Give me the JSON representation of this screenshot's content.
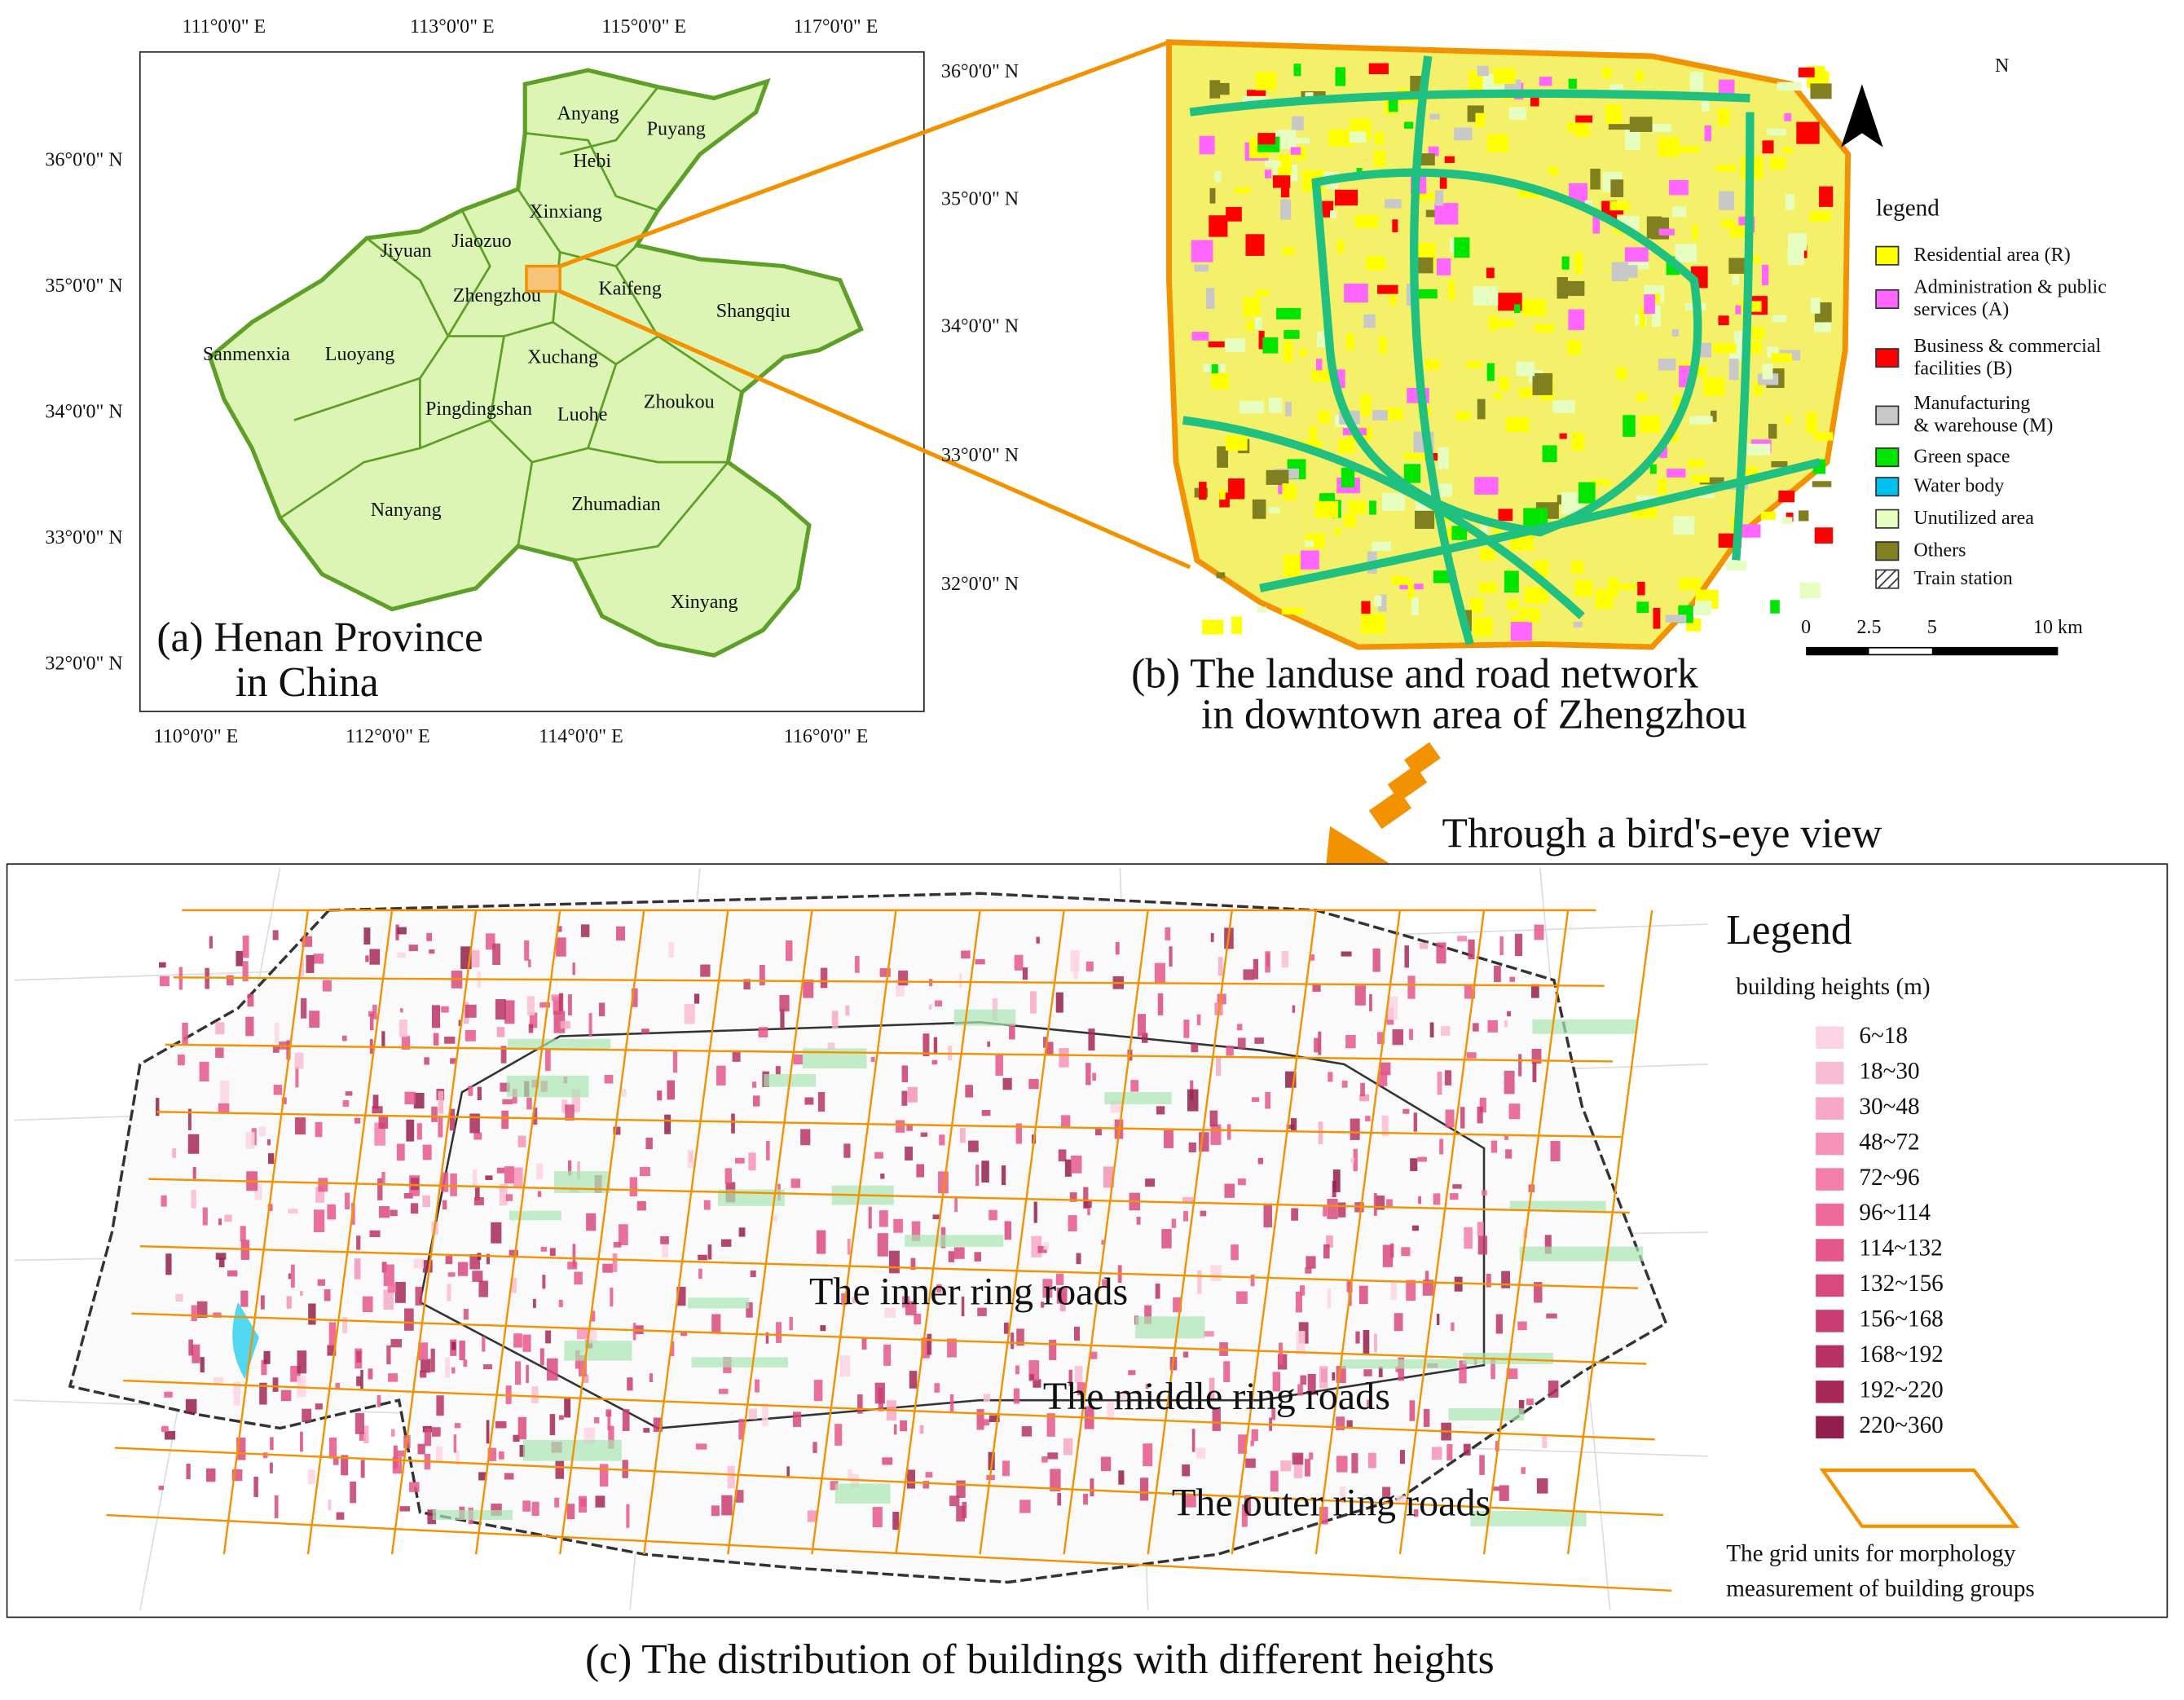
{
  "panel_a": {
    "caption": [
      "(a)  Henan Province",
      "in China"
    ],
    "top_ticks": [
      "111°0'0\" E",
      "113°0'0\" E",
      "115°0'0\" E",
      "117°0'0\" E"
    ],
    "bottom_ticks": [
      "110°0'0\" E",
      "112°0'0\" E",
      "114°0'0\" E",
      "116°0'0\" E"
    ],
    "left_ticks": [
      "36°0'0\" N",
      "35°0'0\" N",
      "34°0'0\" N",
      "33°0'0\" N",
      "32°0'0\" N"
    ],
    "right_ticks": [
      "36°0'0\" N",
      "35°0'0\" N",
      "34°0'0\" N",
      "33°0'0\" N",
      "32°0'0\" N"
    ],
    "cities": [
      "Anyang",
      "Puyang",
      "Hebi",
      "Xinxiang",
      "Jiyuan",
      "Jiaozuo",
      "Zhengzhou",
      "Kaifeng",
      "Shangqiu",
      "Sanmenxia",
      "Luoyang",
      "Xuchang",
      "Pingdingshan",
      "Luohe",
      "Zhoukou",
      "Nanyang",
      "Zhumadian",
      "Xinyang"
    ]
  },
  "panel_b": {
    "north": "N",
    "legend_title": "legend",
    "legend": [
      {
        "label": [
          "Residential area (R)"
        ],
        "color": "#ffff00"
      },
      {
        "label": [
          "Administration & public",
          "services (A)"
        ],
        "color": "#ff66ff"
      },
      {
        "label": [
          "Business & commercial",
          "facilities (B)"
        ],
        "color": "#ff0000"
      },
      {
        "label": [
          "Manufacturing",
          "& warehouse (M)"
        ],
        "color": "#c8c8c8"
      },
      {
        "label": [
          "Green space"
        ],
        "color": "#00e600"
      },
      {
        "label": [
          "Water body"
        ],
        "color": "#00c0f0"
      },
      {
        "label": [
          "Unutilized area"
        ],
        "color": "#e6ffc0"
      },
      {
        "label": [
          "Others"
        ],
        "color": "#808020"
      },
      {
        "label": [
          "Train station"
        ],
        "color": "hatch"
      }
    ],
    "scale": [
      "0",
      "2.5",
      "5",
      "10 km"
    ],
    "caption": [
      "(b) The landuse and road network",
      "in downtown area of Zhengzhou"
    ]
  },
  "arrow_text": "Through a bird's-eye view",
  "panel_c": {
    "legend_title": "Legend",
    "legend_subtitle": "building heights (m)",
    "classes": [
      {
        "label": "6~18",
        "color": "#fbd3e2"
      },
      {
        "label": "18~30",
        "color": "#f9bdd3"
      },
      {
        "label": "30~48",
        "color": "#f7a8c6"
      },
      {
        "label": "48~72",
        "color": "#f593b8"
      },
      {
        "label": "72~96",
        "color": "#f27ea9"
      },
      {
        "label": "96~114",
        "color": "#ee6a9b"
      },
      {
        "label": "114~132",
        "color": "#e5578b"
      },
      {
        "label": "132~156",
        "color": "#d84a7e"
      },
      {
        "label": "156~168",
        "color": "#c83d71"
      },
      {
        "label": "168~192",
        "color": "#b73264"
      },
      {
        "label": "192~220",
        "color": "#a52857"
      },
      {
        "label": "220~360",
        "color": "#921f4b"
      }
    ],
    "grid_note": [
      "The grid units for morphology",
      "measurement of building groups"
    ],
    "rings": [
      "The inner ring roads",
      "The middle ring roads",
      "The outer ring roads"
    ],
    "caption": "(c)  The distribution of buildings with different heights"
  }
}
